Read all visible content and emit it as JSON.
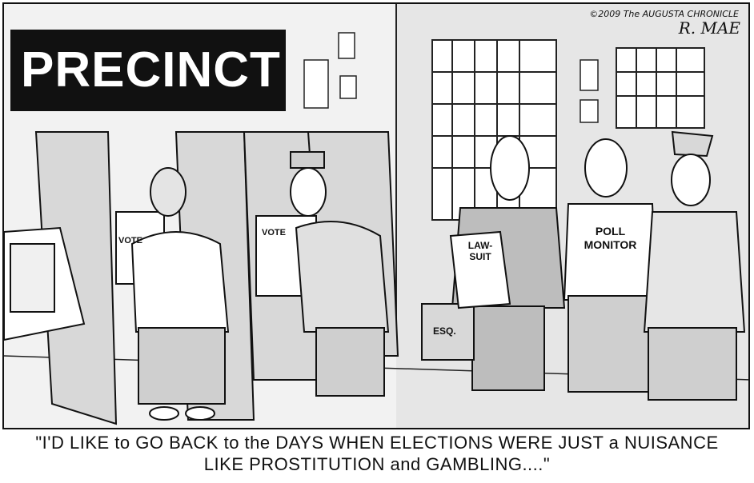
{
  "sign": {
    "text": "PRECINCT"
  },
  "credit": {
    "text": "©2009 The AUGUSTA CHRONICLE"
  },
  "signature": {
    "text": "R. MAE"
  },
  "booth_labels": [
    "VOTE",
    "VOTE"
  ],
  "briefcase_label": "ESQ.",
  "document_label_line1": "LAW-",
  "document_label_line2": "SUIT",
  "shirt_label_line1": "POLL",
  "shirt_label_line2": "MONITOR",
  "caption": {
    "line1": "\"I'D LIKE to GO BACK to the DAYS WHEN ELECTIONS WERE JUST a NUISANCE",
    "line2": "LIKE PROSTITUTION and GAMBLING....\""
  }
}
